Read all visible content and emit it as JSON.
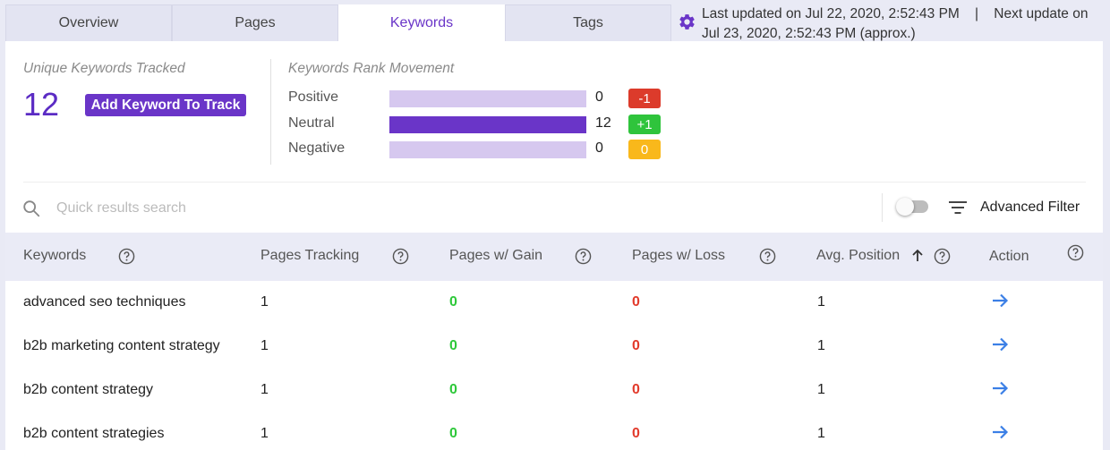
{
  "tabs": [
    {
      "label": "Overview"
    },
    {
      "label": "Pages"
    },
    {
      "label": "Keywords"
    },
    {
      "label": "Tags"
    }
  ],
  "status": {
    "text": "Last updated on Jul 22, 2020, 2:52:43 PM    |    Next update on Jul 23, 2020, 2:52:43 PM (approx.)",
    "icon": "gear-icon"
  },
  "summary": {
    "unique_label": "Unique Keywords Tracked",
    "unique_count": "12",
    "add_button": "Add Keyword To Track"
  },
  "rank_movement": {
    "label": "Keywords Rank Movement",
    "rows": [
      {
        "name": "Positive",
        "value": "0",
        "fill_fraction": 0,
        "delta": "-1",
        "delta_color": "#dc3b2b"
      },
      {
        "name": "Neutral",
        "value": "12",
        "fill_fraction": 1,
        "delta": "+1",
        "delta_color": "#2fc43c"
      },
      {
        "name": "Negative",
        "value": "0",
        "fill_fraction": 0,
        "delta": "0",
        "delta_color": "#f9b81b"
      }
    ]
  },
  "search": {
    "placeholder": "Quick results search",
    "value": ""
  },
  "filter": {
    "toggle_on": false,
    "label": "Advanced Filter"
  },
  "table": {
    "headers": {
      "keywords": "Keywords",
      "pages_tracking": "Pages Tracking",
      "pages_gain": "Pages w/ Gain",
      "pages_loss": "Pages w/ Loss",
      "avg_position": "Avg. Position",
      "action": "Action"
    },
    "sort": "avg_position ascending",
    "rows": [
      {
        "keyword": "advanced seo techniques",
        "tracking": "1",
        "gain": "0",
        "loss": "0",
        "position": "1"
      },
      {
        "keyword": "b2b marketing content strategy",
        "tracking": "1",
        "gain": "0",
        "loss": "0",
        "position": "1"
      },
      {
        "keyword": "b2b content strategy",
        "tracking": "1",
        "gain": "0",
        "loss": "0",
        "position": "1"
      },
      {
        "keyword": "b2b content strategies",
        "tracking": "1",
        "gain": "0",
        "loss": "0",
        "position": "1"
      }
    ]
  },
  "colors": {
    "accent": "#6a35c8",
    "bar_track": "#d6c8ef",
    "gain": "#2ec83a",
    "loss": "#e23b2c",
    "action_arrow": "#3b7fe6"
  }
}
